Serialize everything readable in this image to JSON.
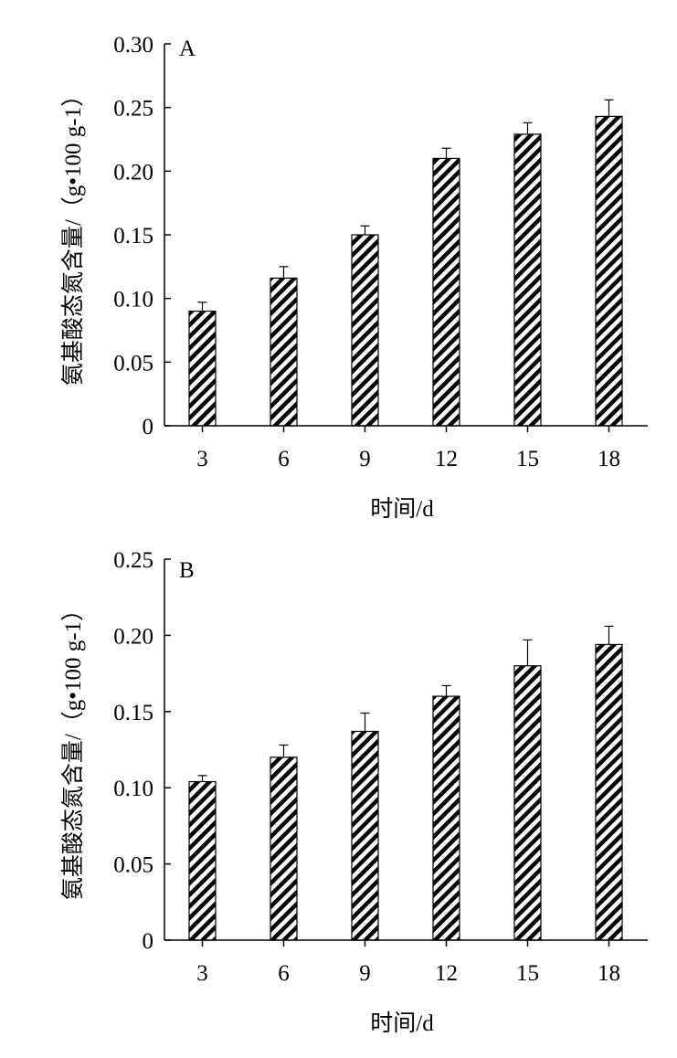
{
  "chart_data": [
    {
      "type": "bar",
      "panel_label": "A",
      "categories": [
        "3",
        "6",
        "9",
        "12",
        "15",
        "18"
      ],
      "values": [
        0.09,
        0.116,
        0.15,
        0.21,
        0.229,
        0.243
      ],
      "errors": [
        0.007,
        0.009,
        0.007,
        0.008,
        0.009,
        0.013
      ],
      "xlabel": "时间/d",
      "ylabel": "氨基酸态氮含量/（g•100 g-1）",
      "ylim": [
        0,
        0.3
      ],
      "yticks": [
        "0",
        "0.05",
        "0.10",
        "0.15",
        "0.20",
        "0.25",
        "0.30"
      ],
      "bar_pattern": "diagonal-hatch",
      "grid": false
    },
    {
      "type": "bar",
      "panel_label": "B",
      "categories": [
        "3",
        "6",
        "9",
        "12",
        "15",
        "18"
      ],
      "values": [
        0.104,
        0.12,
        0.137,
        0.16,
        0.18,
        0.194
      ],
      "errors": [
        0.004,
        0.008,
        0.012,
        0.007,
        0.017,
        0.012
      ],
      "xlabel": "时间/d",
      "ylabel": "氨基酸态氮含量/（g•100 g-1）",
      "ylim": [
        0,
        0.25
      ],
      "yticks": [
        "0",
        "0.05",
        "0.10",
        "0.15",
        "0.20",
        "0.25"
      ],
      "bar_pattern": "diagonal-hatch",
      "grid": false
    }
  ]
}
